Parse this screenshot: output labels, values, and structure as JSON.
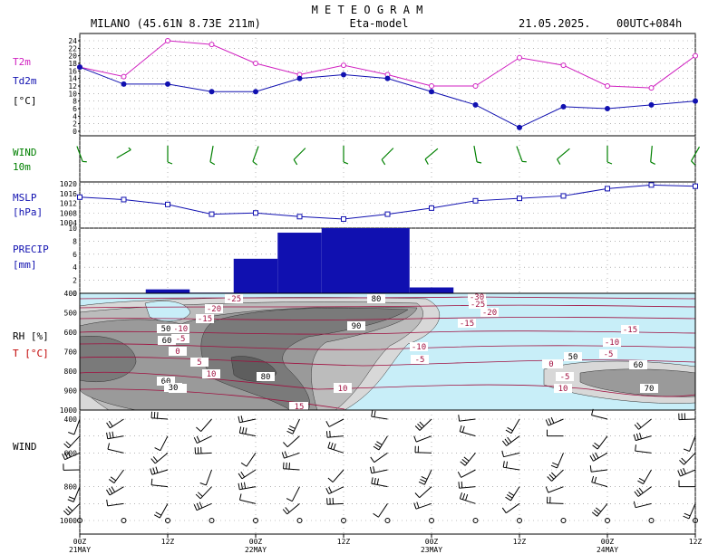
{
  "header": {
    "title": "M E T E O G R A M",
    "station": "MILANO (45.61N 8.73E  211m)",
    "model": "Eta-model",
    "date": "21.05.2025.",
    "run": "00UTC+084h"
  },
  "panels": {
    "temp": {
      "label1": "T2m",
      "label2": "Td2m",
      "label3": "[°C]",
      "color1": "#d020c0",
      "color2": "#1010b0"
    },
    "wind": {
      "label1": "WIND",
      "label2": "10m",
      "color": "#008000"
    },
    "mslp": {
      "label1": "MSLP",
      "label2": "[hPa]",
      "color": "#1010b0"
    },
    "precip": {
      "label1": "PRECIP",
      "label2": "[mm]",
      "color": "#1010b0"
    },
    "rh": {
      "label1": "RH [%]",
      "label2": "T [°C]",
      "color1": "#000000",
      "color2": "#c00000"
    },
    "upwind": {
      "label1": "WIND"
    }
  },
  "time_axis": {
    "hours": [
      0,
      12,
      24,
      36,
      48,
      60,
      72,
      84
    ],
    "labels": [
      "00Z",
      "12Z",
      "00Z",
      "12Z",
      "00Z",
      "12Z",
      "00Z",
      "12Z"
    ],
    "dates": [
      {
        "hour": 0,
        "label": "21MAY"
      },
      {
        "hour": 24,
        "label": "22MAY"
      },
      {
        "hour": 48,
        "label": "23MAY"
      },
      {
        "hour": 72,
        "label": "24MAY"
      }
    ]
  },
  "chart_data": [
    {
      "type": "line",
      "panel": "temperature",
      "x_hours": [
        0,
        6,
        12,
        18,
        24,
        30,
        36,
        42,
        48,
        54,
        60,
        66,
        72,
        78,
        84
      ],
      "ylim": [
        0,
        24
      ],
      "yticks": [
        0,
        2,
        4,
        6,
        8,
        10,
        12,
        14,
        16,
        18,
        20,
        22,
        24
      ],
      "series": [
        {
          "name": "T2m",
          "color": "#d020c0",
          "marker": "circle-open",
          "values": [
            17,
            14.5,
            24,
            23,
            18,
            15,
            17.5,
            15,
            12,
            12,
            19.5,
            17.5,
            12,
            11.5,
            20
          ]
        },
        {
          "name": "Td2m",
          "color": "#1010b0",
          "marker": "circle-filled",
          "values": [
            17,
            12.5,
            12.5,
            10.5,
            10.5,
            14,
            15,
            14,
            10.5,
            7,
            1,
            6.5,
            6,
            7,
            8
          ]
        }
      ]
    },
    {
      "type": "scatter",
      "panel": "wind10m",
      "x_hours": [
        0,
        6,
        12,
        18,
        24,
        30,
        36,
        42,
        48,
        54,
        60,
        66,
        72,
        78,
        84
      ],
      "direction_deg": [
        200,
        300,
        180,
        170,
        160,
        135,
        180,
        135,
        130,
        190,
        200,
        130,
        180,
        175,
        150
      ],
      "color": "#008000"
    },
    {
      "type": "line",
      "panel": "mslp",
      "x_hours": [
        0,
        6,
        12,
        18,
        24,
        30,
        36,
        42,
        48,
        54,
        60,
        66,
        72,
        78,
        84
      ],
      "ylim": [
        1004,
        1020
      ],
      "yticks": [
        1004,
        1008,
        1012,
        1016,
        1020
      ],
      "series": [
        {
          "color": "#1010b0",
          "marker": "square-open",
          "values": [
            1014.5,
            1013.5,
            1011.5,
            1007.5,
            1008,
            1006.5,
            1005.5,
            1007.5,
            1010,
            1013,
            1014,
            1015,
            1018,
            1019.5,
            1019
          ]
        }
      ]
    },
    {
      "type": "bar",
      "panel": "precip",
      "ylim": [
        0,
        10
      ],
      "yticks": [
        0,
        2,
        4,
        6,
        8,
        10
      ],
      "color": "#1010b0",
      "bars": [
        {
          "start": 9,
          "end": 15,
          "value": 0.6
        },
        {
          "start": 15,
          "end": 21,
          "value": 0.1
        },
        {
          "start": 21,
          "end": 27,
          "value": 5.3
        },
        {
          "start": 27,
          "end": 33,
          "value": 9.3
        },
        {
          "start": 33,
          "end": 45,
          "value": 10
        },
        {
          "start": 45,
          "end": 51,
          "value": 0.9
        }
      ]
    },
    {
      "type": "heatmap",
      "panel": "rh_temp_cross_section",
      "ylim": [
        1000,
        400
      ],
      "yticks": [
        400,
        500,
        600,
        700,
        800,
        900,
        1000
      ],
      "rh_levels": [
        50,
        60,
        70,
        80,
        90
      ],
      "rh_labels": [
        "50",
        "60",
        "80",
        "90",
        "80",
        "60",
        "50",
        "70",
        "60",
        "50",
        "30"
      ],
      "temp_labels": [
        "-30",
        "-25",
        "-20",
        "-15",
        "-10",
        "-5",
        "0",
        "5",
        "10",
        "15",
        "-25",
        "-20",
        "-15",
        "-10",
        "-5",
        "0",
        "5",
        "10",
        "-15",
        "-10",
        "-5",
        "0",
        "-5",
        "10",
        "15"
      ],
      "temp_color": "#a01040"
    },
    {
      "type": "scatter",
      "panel": "upper_wind",
      "ylim": [
        1000,
        400
      ],
      "yticks": [
        400,
        600,
        800,
        1000
      ],
      "levels": [
        400,
        500,
        600,
        700,
        800,
        900,
        1000
      ],
      "x_hours": [
        0,
        6,
        12,
        18,
        24,
        30,
        36,
        42,
        48,
        54,
        60,
        66,
        72,
        78,
        84
      ]
    }
  ]
}
